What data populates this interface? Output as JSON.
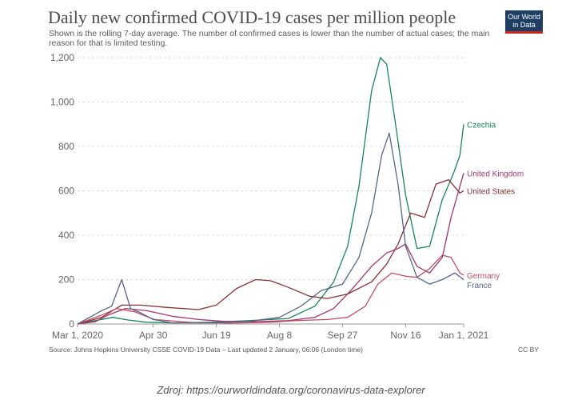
{
  "header": {
    "title": "Daily new confirmed COVID-19 cases per million people",
    "subtitle": "Shown is the rolling 7-day average. The number of confirmed cases is lower than the number of actual cases; the main reason for that is limited testing.",
    "logo_line1": "Our World",
    "logo_line2": "in Data"
  },
  "footer": {
    "source": "Source: Johns Hopkins University CSSE COVID-19 Data – Last updated 2 January, 06:06 (London time)",
    "license": "CC BY",
    "caption": "Zdroj: https://ourworldindata.org/coronavirus-data-explorer"
  },
  "colors": {
    "title": "#4d4d4d",
    "logo_bg": "#1d3d63",
    "logo_accent": "#ce261e"
  },
  "chart_data": {
    "type": "line",
    "ylim": [
      0,
      1200
    ],
    "yticks": [
      0,
      200,
      400,
      600,
      800,
      1000,
      1200
    ],
    "ytick_labels": [
      "0",
      "200",
      "400",
      "600",
      "800",
      "1,000",
      "1,200"
    ],
    "x_range": [
      "2020-03-01",
      "2021-01-01"
    ],
    "xticks": [
      "2020-03-01",
      "2020-04-30",
      "2020-06-19",
      "2020-08-08",
      "2020-09-27",
      "2020-11-16",
      "2021-01-01"
    ],
    "xtick_labels": [
      "Mar 1, 2020",
      "Apr 30",
      "Jun 19",
      "Aug 8",
      "Sep 27",
      "Nov 16",
      "Jan 1, 2021"
    ],
    "grid": "horizontal",
    "series": [
      {
        "name": "Czechia",
        "color": "#18855a",
        "x": [
          "2020-03-01",
          "2020-03-15",
          "2020-03-29",
          "2020-04-10",
          "2020-04-25",
          "2020-05-15",
          "2020-06-15",
          "2020-07-15",
          "2020-08-15",
          "2020-09-05",
          "2020-09-20",
          "2020-10-01",
          "2020-10-10",
          "2020-10-20",
          "2020-10-27",
          "2020-11-01",
          "2020-11-08",
          "2020-11-16",
          "2020-11-25",
          "2020-12-05",
          "2020-12-15",
          "2020-12-24",
          "2020-12-29",
          "2021-01-01"
        ],
        "y": [
          0,
          15,
          30,
          18,
          8,
          5,
          8,
          15,
          25,
          80,
          190,
          350,
          620,
          1050,
          1200,
          1170,
          900,
          580,
          340,
          350,
          560,
          680,
          760,
          900
        ]
      },
      {
        "name": "United Kingdom",
        "color": "#a2356e",
        "x": [
          "2020-03-01",
          "2020-03-15",
          "2020-03-25",
          "2020-04-08",
          "2020-04-25",
          "2020-05-15",
          "2020-06-05",
          "2020-06-25",
          "2020-07-20",
          "2020-08-15",
          "2020-09-05",
          "2020-09-20",
          "2020-10-05",
          "2020-10-20",
          "2020-11-01",
          "2020-11-10",
          "2020-11-16",
          "2020-11-25",
          "2020-12-05",
          "2020-12-15",
          "2020-12-22",
          "2020-12-29",
          "2021-01-01"
        ],
        "y": [
          0,
          10,
          40,
          70,
          60,
          35,
          20,
          12,
          10,
          15,
          30,
          70,
          160,
          260,
          320,
          340,
          360,
          260,
          230,
          300,
          480,
          620,
          680
        ]
      },
      {
        "name": "United States",
        "color": "#883039",
        "x": [
          "2020-03-01",
          "2020-03-20",
          "2020-04-05",
          "2020-04-20",
          "2020-05-10",
          "2020-06-05",
          "2020-06-19",
          "2020-07-05",
          "2020-07-20",
          "2020-08-01",
          "2020-08-15",
          "2020-09-01",
          "2020-09-15",
          "2020-10-01",
          "2020-10-20",
          "2020-11-01",
          "2020-11-10",
          "2020-11-20",
          "2020-12-01",
          "2020-12-10",
          "2020-12-20",
          "2020-12-29",
          "2021-01-01"
        ],
        "y": [
          0,
          30,
          85,
          85,
          75,
          65,
          85,
          160,
          200,
          195,
          165,
          125,
          115,
          135,
          190,
          270,
          360,
          500,
          480,
          630,
          650,
          590,
          600
        ]
      },
      {
        "name": "Germany",
        "color": "#c15065",
        "x": [
          "2020-03-01",
          "2020-03-20",
          "2020-04-01",
          "2020-04-15",
          "2020-05-01",
          "2020-06-01",
          "2020-07-01",
          "2020-08-01",
          "2020-08-20",
          "2020-09-15",
          "2020-10-01",
          "2020-10-15",
          "2020-10-25",
          "2020-11-05",
          "2020-11-16",
          "2020-11-25",
          "2020-12-05",
          "2020-12-15",
          "2020-12-22",
          "2020-12-29",
          "2021-01-01"
        ],
        "y": [
          0,
          40,
          70,
          55,
          20,
          6,
          4,
          8,
          15,
          20,
          30,
          80,
          180,
          230,
          215,
          210,
          250,
          310,
          300,
          230,
          220
        ]
      },
      {
        "name": "France",
        "color": "#58658a",
        "x": [
          "2020-03-01",
          "2020-03-20",
          "2020-03-28",
          "2020-04-05",
          "2020-04-12",
          "2020-04-20",
          "2020-04-30",
          "2020-05-15",
          "2020-06-15",
          "2020-07-15",
          "2020-08-08",
          "2020-08-25",
          "2020-09-10",
          "2020-09-27",
          "2020-10-10",
          "2020-10-20",
          "2020-10-28",
          "2020-11-03",
          "2020-11-10",
          "2020-11-16",
          "2020-11-25",
          "2020-12-05",
          "2020-12-15",
          "2020-12-25",
          "2021-01-01"
        ],
        "y": [
          0,
          60,
          80,
          200,
          70,
          50,
          20,
          5,
          5,
          12,
          30,
          80,
          150,
          180,
          300,
          500,
          760,
          860,
          630,
          350,
          210,
          180,
          200,
          230,
          200
        ]
      }
    ]
  }
}
